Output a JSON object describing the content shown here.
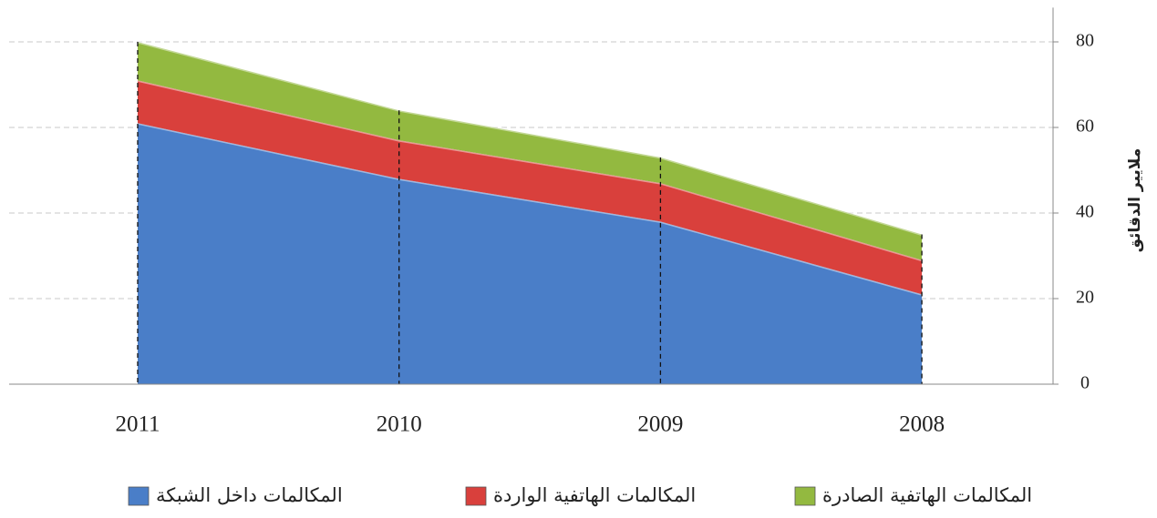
{
  "chart_data": {
    "type": "stacked_area",
    "categories": [
      "2011",
      "2010",
      "2009",
      "2008"
    ],
    "series": [
      {
        "name": "المكالمات داخل الشبكة",
        "color": "#4a7ec8",
        "values": [
          61,
          48,
          38,
          21
        ]
      },
      {
        "name": "المكالمات الهاتفية الواردة",
        "color": "#d9403c",
        "values": [
          10,
          9,
          9,
          8
        ]
      },
      {
        "name": "المكالمات الهاتفية الصادرة",
        "color": "#93b940",
        "values": [
          9,
          7,
          6,
          6
        ]
      }
    ],
    "y_axis_label": "ملايير الدقائق",
    "ylim": [
      0,
      88
    ],
    "yticks": [
      0,
      20,
      40,
      60,
      80
    ],
    "grid": true
  }
}
